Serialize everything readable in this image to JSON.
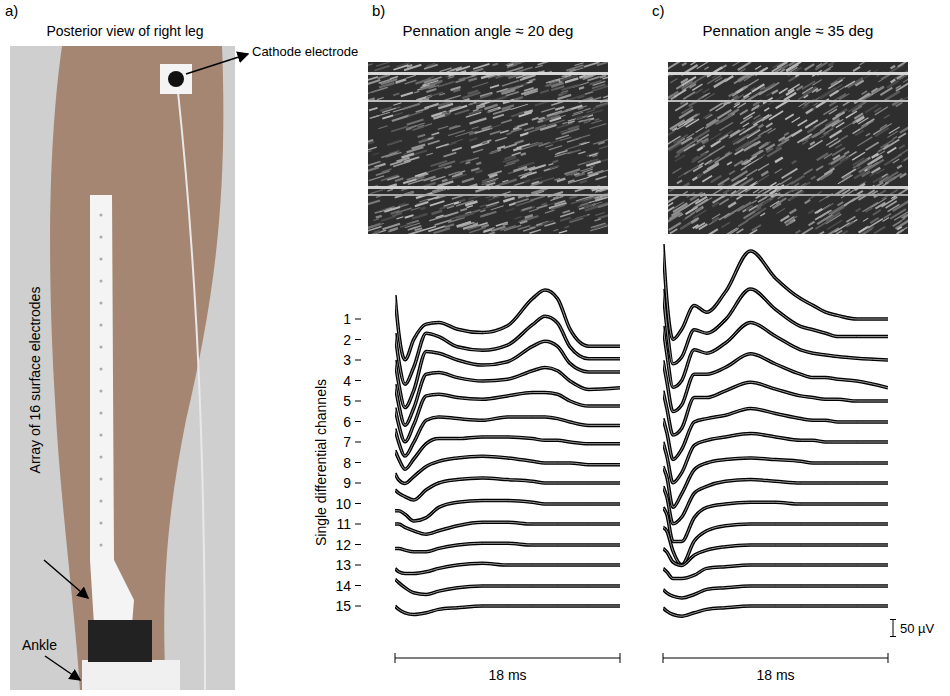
{
  "figure": {
    "panel_labels": [
      "a)",
      "b)",
      "c)"
    ],
    "photo": {
      "title": "Posterior view of right leg",
      "cathode_label": "Cathode electrode",
      "array_label": "Array of 16 surface electrodes",
      "ankle_label": "Ankle"
    }
  },
  "chart_data": [
    {
      "type": "line",
      "title": "Pennation angle ≈ 20 deg",
      "y_label": "Single differential channels",
      "x_label": "18 ms",
      "xlim": [
        0,
        18
      ],
      "ylim": [
        -250,
        250
      ],
      "tick_labels": false,
      "x": [
        0,
        0.3,
        0.8,
        1.5,
        2.5,
        3.5,
        5,
        7,
        9,
        11,
        12,
        13,
        14,
        15.5,
        18
      ],
      "series": [
        {
          "name": "1",
          "color": "#000000",
          "values": [
            70,
            -40,
            -120,
            -60,
            -15,
            -10,
            -30,
            -40,
            -20,
            60,
            85,
            60,
            -30,
            -80,
            -80
          ]
        },
        {
          "name": "2",
          "color": "#000000",
          "values": [
            20,
            -60,
            -130,
            -80,
            20,
            10,
            -20,
            -30,
            -15,
            45,
            70,
            50,
            -20,
            -55,
            -55
          ]
        },
        {
          "name": "3",
          "color": "#000000",
          "values": [
            0,
            -70,
            -140,
            -90,
            25,
            20,
            0,
            -15,
            -5,
            40,
            55,
            40,
            -10,
            -35,
            -35
          ]
        },
        {
          "name": "4",
          "color": "#000000",
          "values": [
            -10,
            -70,
            -130,
            -80,
            20,
            25,
            10,
            0,
            5,
            30,
            40,
            30,
            0,
            -25,
            -20
          ]
        },
        {
          "name": "5",
          "color": "#000000",
          "values": [
            -20,
            -70,
            -120,
            -70,
            15,
            20,
            10,
            5,
            15,
            25,
            25,
            20,
            0,
            -15,
            -15
          ]
        },
        {
          "name": "6",
          "color": "#000000",
          "values": [
            -20,
            -60,
            -100,
            -60,
            5,
            15,
            10,
            5,
            15,
            15,
            15,
            10,
            0,
            -10,
            -10
          ]
        },
        {
          "name": "7",
          "color": "#000000",
          "values": [
            -25,
            -50,
            -80,
            -50,
            -5,
            10,
            10,
            15,
            15,
            10,
            5,
            5,
            0,
            -5,
            -5
          ]
        },
        {
          "name": "8",
          "color": "#000000",
          "values": [
            -30,
            -50,
            -60,
            -40,
            -10,
            5,
            15,
            20,
            15,
            5,
            0,
            0,
            0,
            -5,
            -5
          ]
        },
        {
          "name": "9",
          "color": "#000000",
          "values": [
            -20,
            -30,
            -40,
            -50,
            -20,
            0,
            10,
            15,
            10,
            5,
            0,
            0,
            0,
            0,
            0
          ]
        },
        {
          "name": "10",
          "color": "#000000",
          "values": [
            -20,
            -20,
            -30,
            -50,
            -40,
            -10,
            5,
            10,
            10,
            5,
            0,
            0,
            0,
            0,
            0
          ]
        },
        {
          "name": "11",
          "color": "#000000",
          "values": [
            0,
            0,
            -10,
            -20,
            -30,
            -20,
            -5,
            5,
            5,
            0,
            0,
            0,
            0,
            0,
            0
          ]
        },
        {
          "name": "12",
          "color": "#000000",
          "values": [
            -10,
            -10,
            -15,
            -20,
            -20,
            -10,
            0,
            5,
            5,
            0,
            0,
            0,
            0,
            0,
            0
          ]
        },
        {
          "name": "13",
          "color": "#000000",
          "values": [
            -10,
            -20,
            -25,
            -25,
            -20,
            -10,
            0,
            5,
            0,
            0,
            0,
            0,
            0,
            0,
            0
          ]
        },
        {
          "name": "14",
          "color": "#000000",
          "values": [
            20,
            10,
            -5,
            -20,
            -25,
            -15,
            -5,
            0,
            0,
            0,
            0,
            0,
            0,
            0,
            0
          ]
        },
        {
          "name": "15",
          "color": "#000000",
          "values": [
            0,
            -10,
            -20,
            -25,
            -20,
            -10,
            -5,
            0,
            0,
            0,
            0,
            0,
            0,
            0,
            0
          ]
        }
      ]
    },
    {
      "type": "line",
      "title": "Pennation angle ≈ 35 deg",
      "x_label": "18 ms",
      "xlim": [
        0,
        18
      ],
      "ylim": [
        -250,
        250
      ],
      "tick_labels": false,
      "scale_bar": {
        "value": 50,
        "label": "50 µV"
      },
      "x": [
        0,
        0.3,
        0.8,
        1.5,
        2.5,
        3.5,
        5,
        7,
        9,
        11,
        12,
        13,
        14,
        15.5,
        18
      ],
      "series": [
        {
          "color": "#000000",
          "values": [
            220,
            60,
            -60,
            -30,
            40,
            20,
            80,
            200,
            120,
            60,
            40,
            20,
            10,
            0,
            0
          ]
        },
        {
          "color": "#000000",
          "values": [
            150,
            40,
            -70,
            -50,
            30,
            20,
            60,
            150,
            90,
            40,
            30,
            20,
            10,
            10,
            10
          ]
        },
        {
          "color": "#000000",
          "values": [
            100,
            20,
            -80,
            -60,
            30,
            20,
            50,
            110,
            70,
            30,
            20,
            15,
            10,
            5,
            0
          ]
        },
        {
          "color": "#000000",
          "values": [
            60,
            0,
            -90,
            -70,
            20,
            20,
            40,
            80,
            50,
            20,
            10,
            10,
            5,
            0,
            -20
          ]
        },
        {
          "color": "#000000",
          "values": [
            30,
            -20,
            -100,
            -80,
            10,
            10,
            30,
            55,
            35,
            15,
            10,
            5,
            5,
            0,
            0
          ]
        },
        {
          "color": "#000000",
          "values": [
            10,
            -30,
            -110,
            -80,
            0,
            10,
            20,
            40,
            25,
            10,
            5,
            5,
            0,
            0,
            0
          ]
        },
        {
          "color": "#000000",
          "values": [
            0,
            -40,
            -120,
            -90,
            -10,
            5,
            15,
            25,
            15,
            5,
            5,
            0,
            0,
            0,
            0
          ]
        },
        {
          "color": "#000000",
          "values": [
            -10,
            -40,
            -130,
            -90,
            -20,
            0,
            10,
            15,
            10,
            5,
            0,
            0,
            0,
            0,
            0
          ]
        },
        {
          "color": "#000000",
          "values": [
            -10,
            -40,
            -120,
            -100,
            -30,
            -10,
            5,
            10,
            5,
            0,
            0,
            0,
            0,
            0,
            0
          ]
        },
        {
          "color": "#000000",
          "values": [
            -10,
            -30,
            -110,
            -110,
            -40,
            -10,
            0,
            5,
            5,
            0,
            0,
            0,
            0,
            0,
            0
          ]
        },
        {
          "color": "#000000",
          "values": [
            -10,
            -20,
            -80,
            -120,
            -50,
            -20,
            -5,
            0,
            0,
            0,
            0,
            0,
            0,
            0,
            0
          ]
        },
        {
          "color": "#000000",
          "values": [
            -10,
            -20,
            -50,
            -60,
            -30,
            -15,
            -5,
            0,
            0,
            0,
            0,
            0,
            0,
            0,
            0
          ]
        },
        {
          "color": "#000000",
          "values": [
            -10,
            -20,
            -40,
            -40,
            -30,
            -10,
            -5,
            0,
            0,
            0,
            0,
            0,
            0,
            0,
            0
          ]
        },
        {
          "color": "#000000",
          "values": [
            -10,
            -20,
            -30,
            -35,
            -25,
            -10,
            -5,
            0,
            0,
            0,
            0,
            0,
            0,
            0,
            0
          ]
        },
        {
          "color": "#000000",
          "values": [
            -5,
            -15,
            -25,
            -30,
            -20,
            -10,
            -5,
            0,
            0,
            0,
            0,
            0,
            0,
            0,
            0
          ]
        }
      ]
    }
  ]
}
